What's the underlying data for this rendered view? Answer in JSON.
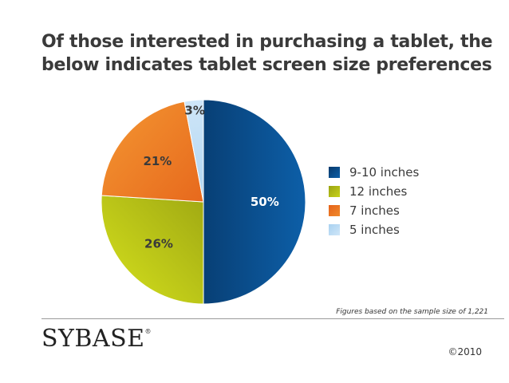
{
  "chart_data": {
    "type": "pie",
    "title_lines": [
      "Of those interested in purchasing a tablet, the",
      "below indicates tablet screen size preferences"
    ],
    "slices": [
      {
        "label": "9-10 inches",
        "value": 50,
        "value_label": "50%",
        "color": "#0d5fa8",
        "color_dark": "#07396b",
        "text_color": "#ffffff"
      },
      {
        "label": "12 inches",
        "value": 26,
        "value_label": "26%",
        "color": "#c7d21a",
        "color_dark": "#9aa312",
        "text_color": "#3a3a3a"
      },
      {
        "label": "7 inches",
        "value": 21,
        "value_label": "21%",
        "color": "#f08a2c",
        "color_dark": "#e5621a",
        "text_color": "#3a3a3a"
      },
      {
        "label": "5 inches",
        "value": 3,
        "value_label": "3%",
        "color": "#cfe6f8",
        "color_dark": "#a9d1f0",
        "text_color": "#3a3a3a"
      }
    ],
    "legend_position": "right"
  },
  "footnote": "Figures based on the sample size of 1,221",
  "logo_text": "SYBASE",
  "logo_mark": "®",
  "copyright": "©2010"
}
